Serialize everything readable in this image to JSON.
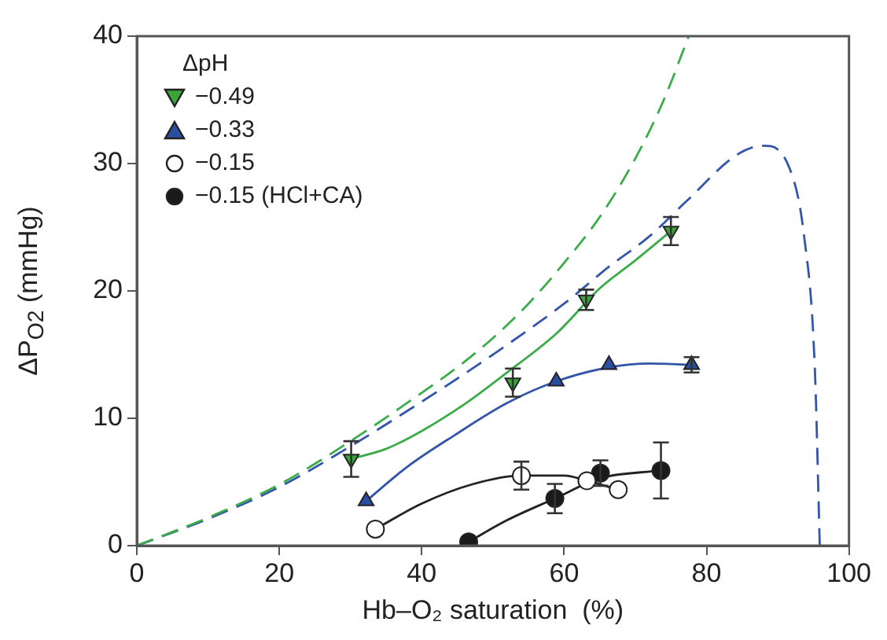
{
  "chart_data": {
    "type": "scatter",
    "xlabel": "Hb–O₂ saturation  (%)",
    "ylabel": "ΔP$_{O2}$ (mmHg)",
    "legend_title": "ΔpH",
    "xlim": [
      0,
      100
    ],
    "xticks": [
      0,
      20,
      40,
      60,
      80,
      100
    ],
    "ylim": [
      0,
      40
    ],
    "yticks": [
      0,
      10,
      20,
      30,
      40
    ],
    "grid": false,
    "legend": "top left",
    "series": [
      {
        "type": "line",
        "line_style": "dashed",
        "color": "#3cac4a",
        "x": [
          0,
          10,
          20,
          30,
          40,
          45,
          50,
          55,
          60,
          65,
          70,
          74,
          77.5
        ],
        "values": [
          0,
          2.2,
          4.8,
          8.2,
          12,
          14,
          16.3,
          19,
          22.2,
          25.8,
          30.4,
          35,
          40
        ]
      },
      {
        "type": "line",
        "line_style": "dashed",
        "color": "#3355aa",
        "x": [
          0,
          10,
          20,
          30,
          40,
          50,
          60,
          66.3,
          72,
          77.1,
          84.3,
          88,
          91.6,
          93.7,
          95.2,
          95.9
        ],
        "values": [
          0,
          2.1,
          4.6,
          7.8,
          11.3,
          15,
          19,
          21.9,
          24.3,
          27,
          30.7,
          31.4,
          29.7,
          24.3,
          14,
          0
        ]
      },
      {
        "type": "line",
        "line_style": "solid",
        "color": "#3cac4a",
        "x": [
          30,
          35,
          40,
          46,
          52,
          59,
          65,
          70,
          75
        ],
        "values": [
          6.8,
          7.6,
          9.0,
          11.1,
          13.6,
          16.7,
          20.2,
          22.4,
          24.7
        ]
      },
      {
        "type": "line",
        "line_style": "solid",
        "color": "#3355aa",
        "x": [
          32.2,
          38,
          44.7,
          52,
          58.9,
          66.3,
          72,
          77.9
        ],
        "values": [
          3.5,
          6.2,
          8.7,
          11.2,
          12.9,
          14.0,
          14.3,
          14.2
        ]
      },
      {
        "type": "line",
        "line_style": "solid",
        "color": "#222222",
        "x": [
          33.5,
          40,
          47,
          54,
          60,
          63.2,
          67.6
        ],
        "values": [
          1.3,
          3.3,
          4.8,
          5.5,
          5.5,
          5.1,
          4.4
        ]
      },
      {
        "type": "line",
        "line_style": "solid",
        "color": "#222222",
        "x": [
          46.6,
          52,
          58.7,
          65.1,
          73.6
        ],
        "values": [
          0.3,
          2.0,
          3.7,
          5.3,
          5.9
        ]
      },
      {
        "name": "−0.49",
        "marker": "triangle-down",
        "color": "#3aa53a",
        "x": [
          30.1,
          52.8,
          63.1,
          75.0
        ],
        "values": [
          6.8,
          12.8,
          19.3,
          24.7
        ],
        "errors": [
          1.4,
          1.1,
          0.8,
          1.1
        ]
      },
      {
        "name": "−0.33",
        "marker": "triangle",
        "color": "#2a4fa0",
        "x": [
          32.2,
          58.9,
          66.3,
          77.9
        ],
        "values": [
          3.5,
          12.9,
          14.2,
          14.2
        ],
        "errors": [
          null,
          null,
          null,
          0.6
        ]
      },
      {
        "name": "−0.15",
        "marker": "circle",
        "color": "#ffffff",
        "x": [
          33.5,
          54.0,
          63.2,
          67.6
        ],
        "values": [
          1.3,
          5.5,
          5.1,
          4.4
        ],
        "errors": [
          null,
          1.1,
          null,
          null
        ]
      },
      {
        "name": "−0.15 (HCl+CA)",
        "marker": "circle",
        "color": "#1a1a1a",
        "x": [
          46.6,
          58.7,
          65.1,
          73.6
        ],
        "values": [
          0.3,
          3.7,
          5.7,
          5.9
        ],
        "errors": [
          null,
          1.15,
          1.0,
          2.2
        ]
      }
    ]
  }
}
